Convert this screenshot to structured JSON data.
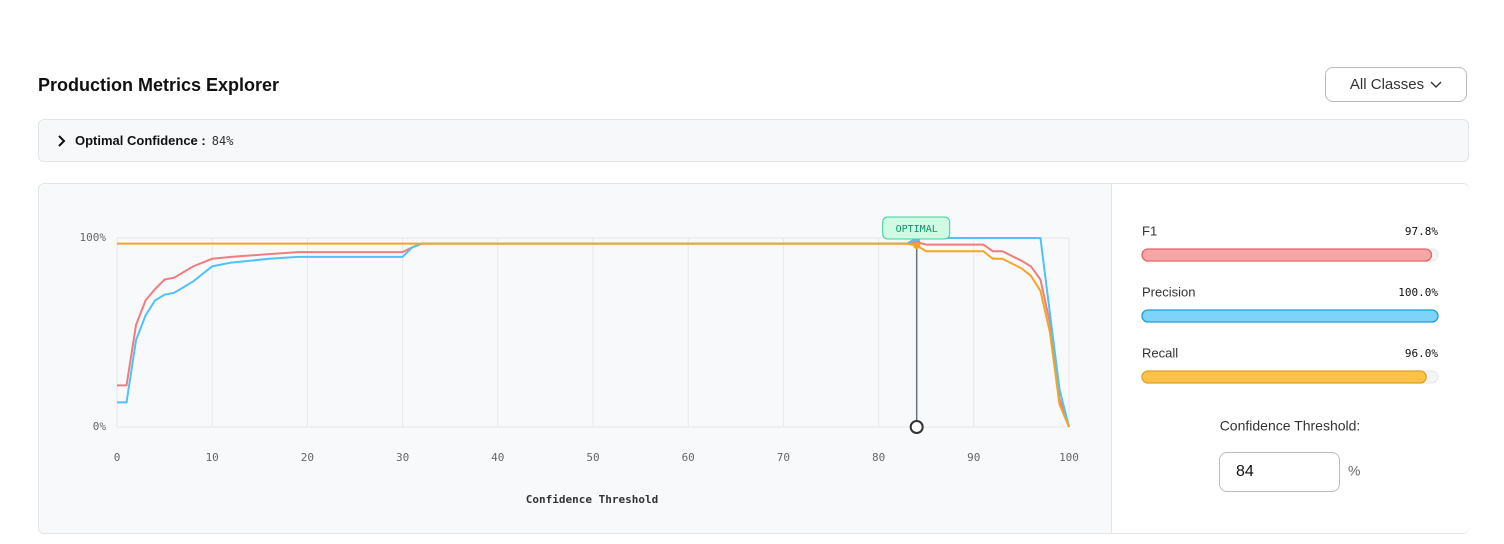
{
  "header": {
    "title": "Production Metrics Explorer",
    "dropdown": "All Classes"
  },
  "summary": {
    "label": "Optimal Confidence :",
    "value": "84%"
  },
  "chart_data": {
    "type": "line",
    "x_label": "Confidence Threshold",
    "x": [
      0,
      1,
      2,
      3,
      4,
      5,
      6,
      8,
      10,
      12,
      16,
      19,
      30,
      31,
      32,
      83,
      84,
      85,
      91,
      92,
      93,
      95,
      96,
      97,
      98,
      99,
      100
    ],
    "series": [
      {
        "name": "F1",
        "color": "#f07c7c",
        "values": [
          22,
          22,
          54,
          67,
          73,
          78,
          79,
          85,
          89,
          90,
          91.5,
          92.5,
          92.5,
          95,
          97,
          97,
          97.8,
          96.5,
          96.5,
          93,
          93,
          88,
          85,
          78,
          55,
          15,
          0
        ]
      },
      {
        "name": "Precision",
        "color": "#4fc3f7",
        "values": [
          13,
          13,
          46,
          59,
          67,
          70,
          71,
          77,
          85,
          87,
          89,
          90,
          90,
          95,
          97,
          97,
          100,
          100,
          100,
          100,
          100,
          100,
          100,
          100,
          60,
          20,
          0
        ]
      },
      {
        "name": "Recall",
        "color": "#f5a524",
        "values": [
          97,
          97,
          97,
          97,
          97,
          97,
          97,
          97,
          97,
          97,
          97,
          97,
          97,
          97,
          97,
          97,
          96,
          93,
          93,
          89,
          89,
          84,
          80,
          72,
          50,
          12,
          0
        ]
      }
    ],
    "xlim": [
      0,
      100
    ],
    "ylim": [
      0,
      100
    ],
    "xticks": [
      0,
      10,
      20,
      30,
      40,
      50,
      60,
      70,
      80,
      90,
      100
    ],
    "yticks": [
      {
        "value": 0,
        "label": "0%"
      },
      {
        "value": 100,
        "label": "100%"
      }
    ],
    "grid": true,
    "optimal": {
      "x": 84,
      "label": "OPTIMAL"
    }
  },
  "metrics": [
    {
      "name": "F1",
      "value": 97.8,
      "value_label": "97.8%",
      "color": "#f8a5a5",
      "stroke": "#e06666"
    },
    {
      "name": "Precision",
      "value": 100.0,
      "value_label": "100.0%",
      "color": "#7dd3f8",
      "stroke": "#1e9fd8"
    },
    {
      "name": "Recall",
      "value": 96.0,
      "value_label": "96.0%",
      "color": "#fbc24a",
      "stroke": "#e0a020"
    }
  ],
  "threshold": {
    "label": "Confidence Threshold:",
    "value": "84",
    "unit": "%"
  }
}
